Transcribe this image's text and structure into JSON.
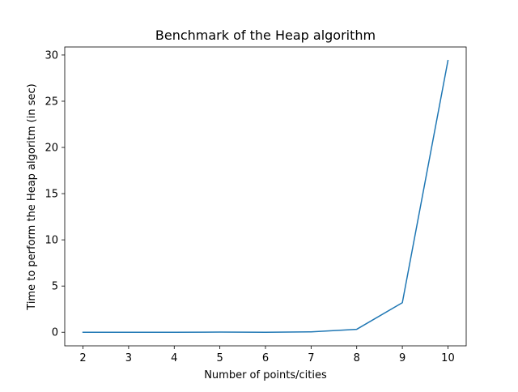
{
  "chart_data": {
    "type": "line",
    "title": "Benchmark of the Heap algorithm",
    "xlabel": "Number of points/cities",
    "ylabel": "Time to perform the Heap algoritm (in sec)",
    "x": [
      2,
      3,
      4,
      5,
      6,
      7,
      8,
      9,
      10
    ],
    "series": [
      {
        "values": [
          0.0,
          0.0,
          0.0,
          0.02,
          0.0,
          0.04,
          0.32,
          3.2,
          29.4
        ],
        "color": "#1f77b4"
      }
    ],
    "xlim": [
      1.6,
      10.4
    ],
    "ylim": [
      -1.47,
      30.87
    ],
    "xticks": [
      2,
      3,
      4,
      5,
      6,
      7,
      8,
      9,
      10
    ],
    "yticks": [
      0,
      5,
      10,
      15,
      20,
      25,
      30
    ],
    "grid": false,
    "legend": "none"
  }
}
